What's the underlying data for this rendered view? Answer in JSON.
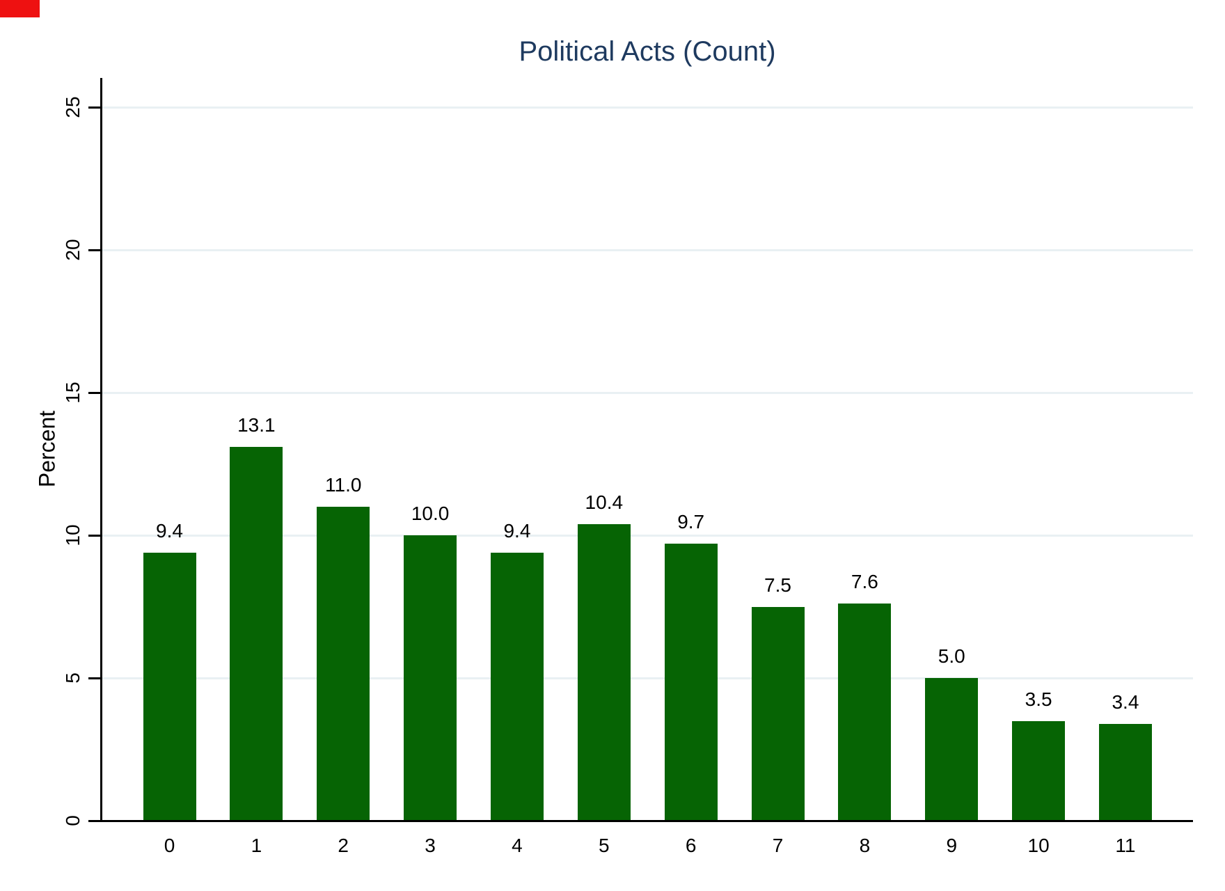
{
  "corner_marker": {
    "color": "#ee1111"
  },
  "chart_data": {
    "type": "bar",
    "title": "Political Acts (Count)",
    "xlabel": "",
    "ylabel": "Percent",
    "categories": [
      "0",
      "1",
      "2",
      "3",
      "4",
      "5",
      "6",
      "7",
      "8",
      "9",
      "10",
      "11"
    ],
    "values": [
      9.4,
      13.1,
      11.0,
      10.0,
      9.4,
      10.4,
      9.7,
      7.5,
      7.6,
      5.0,
      3.5,
      3.4
    ],
    "value_labels": [
      "9.4",
      "13.1",
      "11.0",
      "10.0",
      "9.4",
      "10.4",
      "9.7",
      "7.5",
      "7.6",
      "5.0",
      "3.5",
      "3.4"
    ],
    "y_ticks": [
      0,
      5,
      10,
      15,
      20,
      25
    ],
    "ylim": [
      0,
      25
    ],
    "grid": true,
    "legend": "none",
    "bar_color": "#066404",
    "title_color": "#1e3a5f",
    "grid_color": "#e9f0f3",
    "axis_color": "#000000"
  }
}
